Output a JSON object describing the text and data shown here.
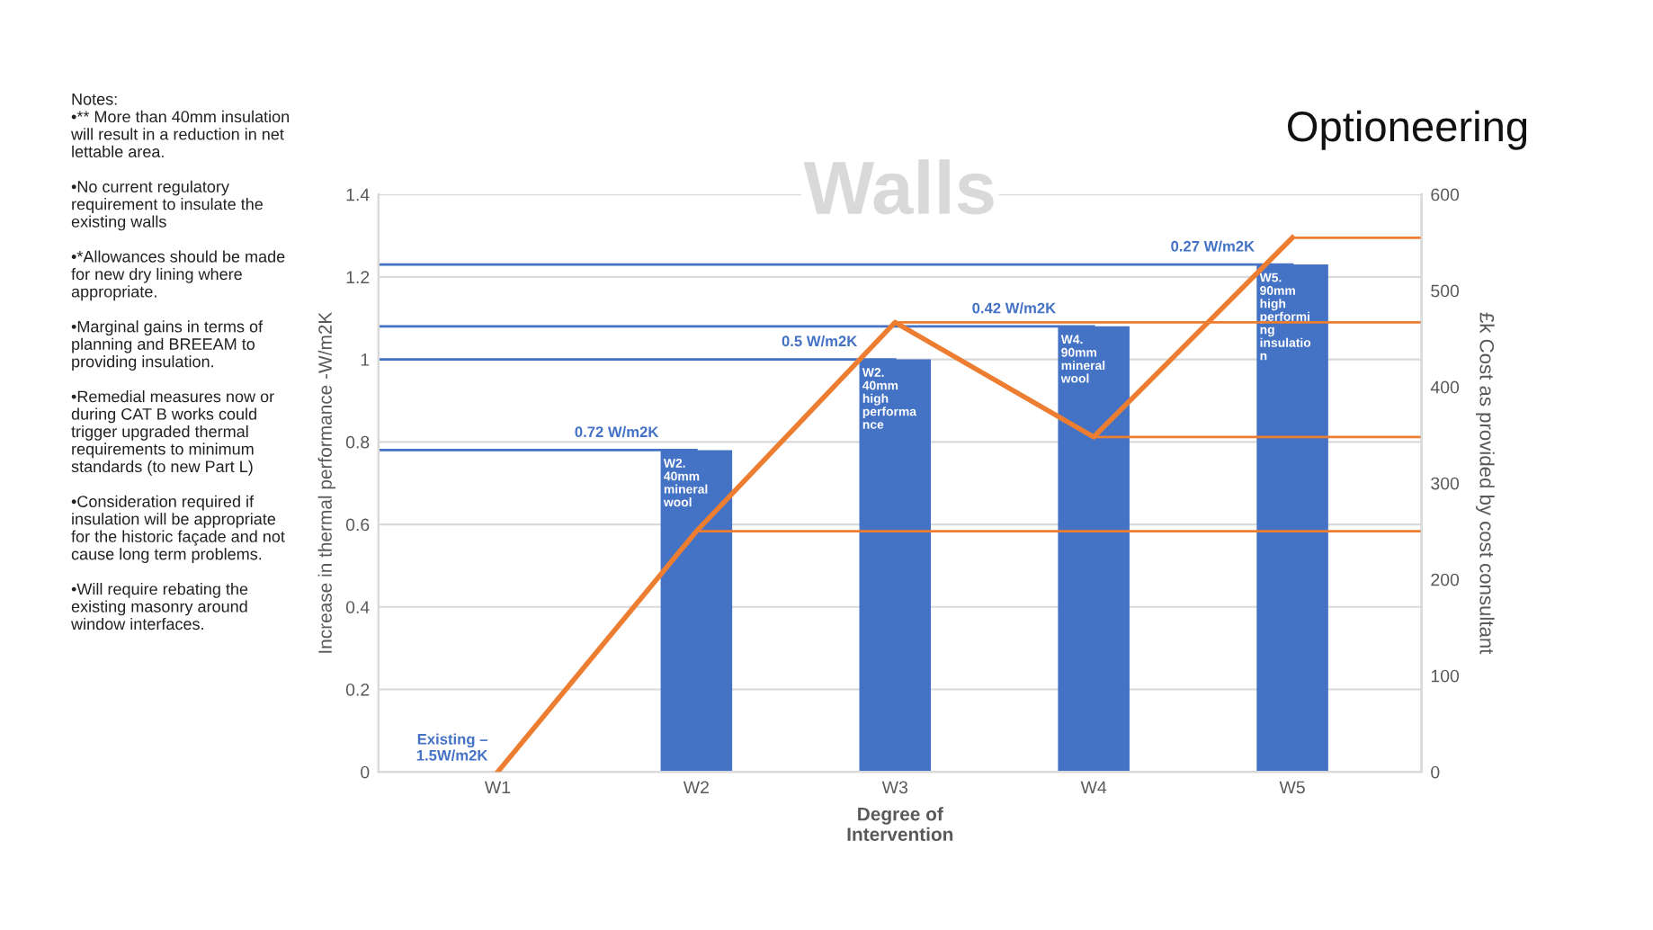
{
  "chart_data": {
    "type": "bar",
    "title": "Optioneering",
    "subtitle": "Walls",
    "xlabel": "Degree of\nIntervention",
    "ylabel": "Increase in thermal performance -W/m2K",
    "y2label": "£k Cost as provided by cost consultant",
    "categories": [
      "W1",
      "W2",
      "W3",
      "W4",
      "W5"
    ],
    "series": [
      {
        "color": "#4472c4",
        "values": [
          0,
          0.78,
          1.0,
          1.08,
          1.23
        ]
      },
      {
        "type": "line",
        "axis": "y2",
        "color": "#ed7d31",
        "values": [
          0,
          250,
          467,
          348,
          555
        ]
      }
    ],
    "ylim": [
      0,
      1.4
    ],
    "yticks": [
      0,
      0.2,
      0.4,
      0.6,
      0.8,
      1,
      1.2,
      1.4
    ],
    "y2lim": [
      0,
      600
    ],
    "y2ticks": [
      0,
      100,
      200,
      300,
      400,
      500,
      600
    ],
    "grid": "y",
    "legend": false,
    "marker": "none",
    "line_style": "solid",
    "ref_lines": [
      {
        "axis": "y",
        "value": 0.78,
        "label": "0.72 W/m2K",
        "color": "#4472c4"
      },
      {
        "axis": "y",
        "value": 1.0,
        "label": "0.5 W/m2K",
        "color": "#4472c4"
      },
      {
        "axis": "y",
        "value": 1.08,
        "label": "0.42 W/m2K",
        "color": "#4472c4"
      },
      {
        "axis": "y",
        "value": 1.23,
        "label": "0.27 W/m2K",
        "color": "#4472c4"
      },
      {
        "axis": "y2",
        "value": 250,
        "color": "#ed7d31"
      },
      {
        "axis": "y2",
        "value": 467,
        "color": "#ed7d31"
      },
      {
        "axis": "y2",
        "value": 348,
        "color": "#ed7d31"
      },
      {
        "axis": "y2",
        "value": 555,
        "color": "#ed7d31"
      }
    ],
    "annotations": [
      {
        "text": "Existing –\n1.5W/m2K",
        "x": "W1",
        "y": 0
      },
      {
        "text": "W2.\n40mm\nmineral\nwool",
        "x": "W2",
        "y": 0.78
      },
      {
        "text": "W2.\n40mm\nhigh\nperforma\nnce",
        "x": "W3",
        "y": 1.0
      },
      {
        "text": "W4.\n90mm\nmineral\nwool",
        "x": "W4",
        "y": 1.08
      },
      {
        "text": "W5.\n90mm\nhigh\nperformi\nng\ninsulatio\nn",
        "x": "W5",
        "y": 1.23
      },
      "Notes:\n•** More than 40mm insulation\nwill result in a reduction in net\nlettable area.\n\n•No current regulatory\nrequirement to insulate the\nexisting walls\n\n•*Allowances should be made\nfor new dry lining where\nappropriate.\n\n•Marginal gains in terms of\nplanning and BREEAM to\nproviding insulation.\n\n•Remedial measures now or\nduring CAT B works could\ntrigger upgraded thermal\nrequirements to minimum\nstandards (to new Part L)\n\n•Consideration required if\ninsulation will be appropriate\nfor the historic façade and not\ncause long term problems.\n\n•Will require rebating the\nexisting masonry around\nwindow interfaces."
    ]
  }
}
